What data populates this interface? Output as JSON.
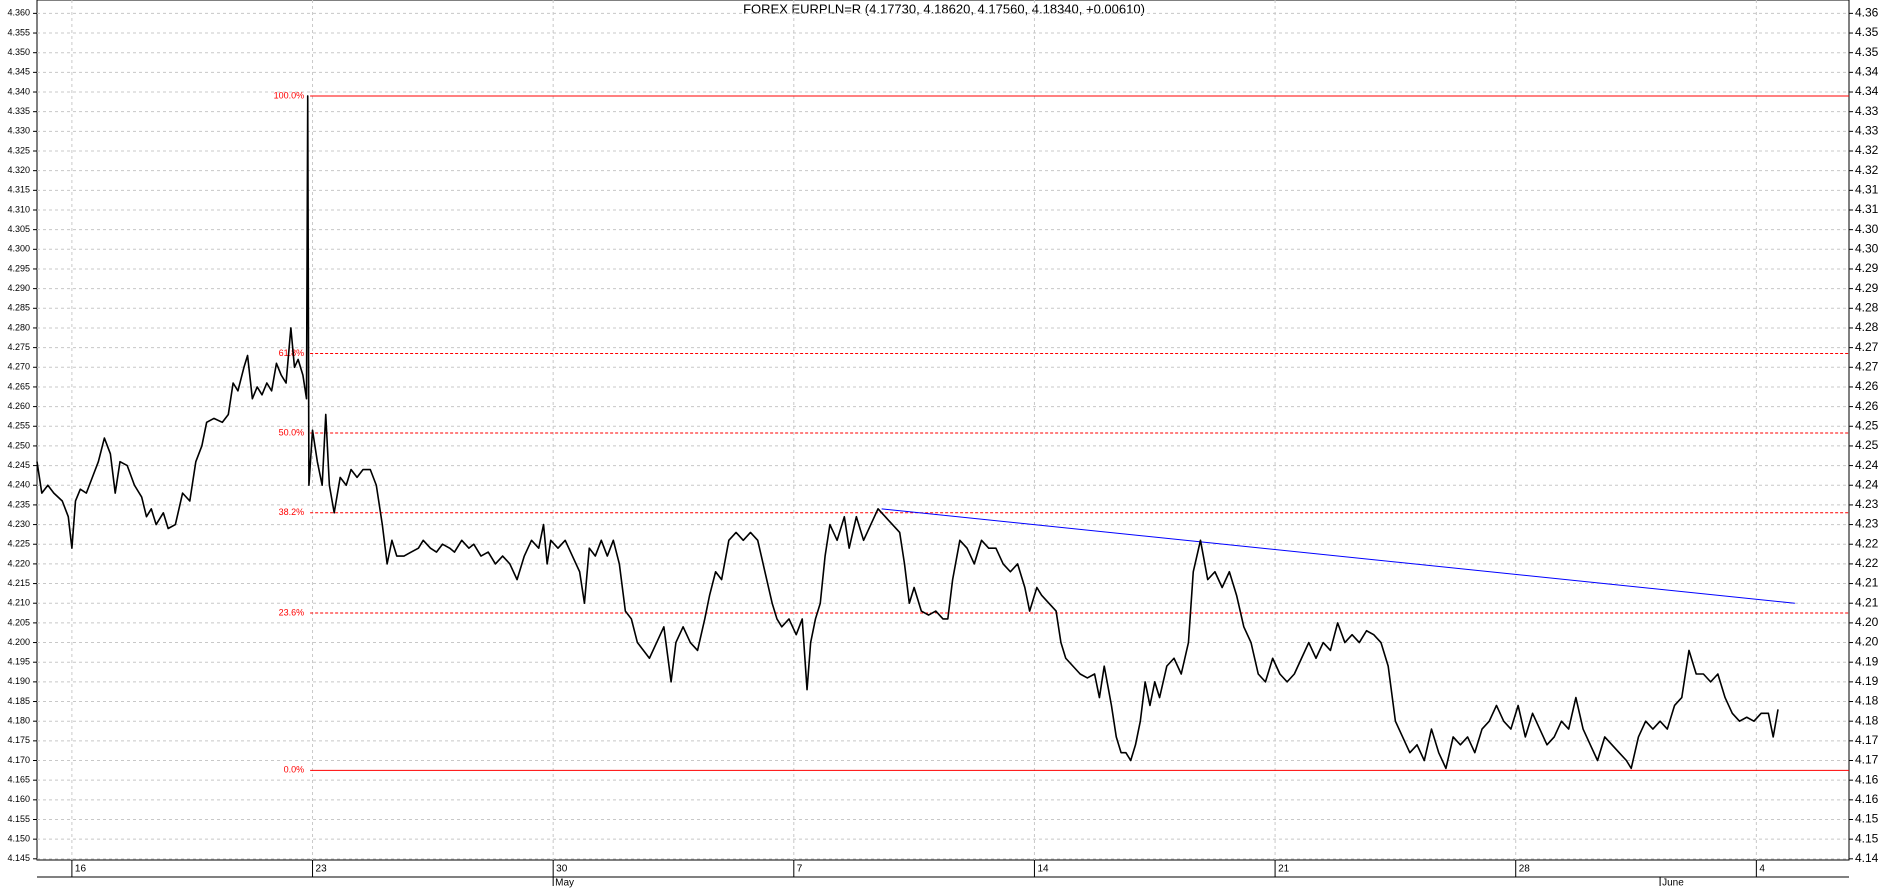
{
  "chart_data": {
    "type": "line",
    "title": "FOREX EURPLN=R (4.17730, 4.18620, 4.17560, 4.18340, +0.00610)",
    "color": "#000000",
    "grid": true,
    "xlim": [
      -0.725,
      36.925
    ],
    "ylim": [
      4.1447,
      4.3634
    ],
    "y2lim": [
      4.1447,
      4.3634
    ],
    "xticks": [
      {
        "value": 0,
        "label": "16"
      },
      {
        "value": 5,
        "label": "23"
      },
      {
        "value": 10,
        "label": "30"
      },
      {
        "value": 15,
        "label": "7"
      },
      {
        "value": 20,
        "label": "14"
      },
      {
        "value": 25,
        "label": "21"
      },
      {
        "value": 30,
        "label": "28"
      },
      {
        "value": 35,
        "label": "4"
      }
    ],
    "month_labels": [
      {
        "value": 10,
        "label": "May"
      },
      {
        "value": 33,
        "label": "June"
      }
    ],
    "yticks": [
      {
        "value": 4.145,
        "label": "4.145"
      },
      {
        "value": 4.15,
        "label": "4.150"
      },
      {
        "value": 4.155,
        "label": "4.155"
      },
      {
        "value": 4.16,
        "label": "4.160"
      },
      {
        "value": 4.165,
        "label": "4.165"
      },
      {
        "value": 4.17,
        "label": "4.170"
      },
      {
        "value": 4.175,
        "label": "4.175"
      },
      {
        "value": 4.18,
        "label": "4.180"
      },
      {
        "value": 4.185,
        "label": "4.185"
      },
      {
        "value": 4.19,
        "label": "4.190"
      },
      {
        "value": 4.195,
        "label": "4.195"
      },
      {
        "value": 4.2,
        "label": "4.200"
      },
      {
        "value": 4.205,
        "label": "4.205"
      },
      {
        "value": 4.21,
        "label": "4.210"
      },
      {
        "value": 4.215,
        "label": "4.215"
      },
      {
        "value": 4.22,
        "label": "4.220"
      },
      {
        "value": 4.225,
        "label": "4.225"
      },
      {
        "value": 4.23,
        "label": "4.230"
      },
      {
        "value": 4.235,
        "label": "4.235"
      },
      {
        "value": 4.24,
        "label": "4.240"
      },
      {
        "value": 4.245,
        "label": "4.245"
      },
      {
        "value": 4.25,
        "label": "4.250"
      },
      {
        "value": 4.255,
        "label": "4.255"
      },
      {
        "value": 4.26,
        "label": "4.260"
      },
      {
        "value": 4.265,
        "label": "4.265"
      },
      {
        "value": 4.27,
        "label": "4.270"
      },
      {
        "value": 4.275,
        "label": "4.275"
      },
      {
        "value": 4.28,
        "label": "4.280"
      },
      {
        "value": 4.285,
        "label": "4.285"
      },
      {
        "value": 4.29,
        "label": "4.290"
      },
      {
        "value": 4.295,
        "label": "4.295"
      },
      {
        "value": 4.3,
        "label": "4.300"
      },
      {
        "value": 4.305,
        "label": "4.305"
      },
      {
        "value": 4.31,
        "label": "4.310"
      },
      {
        "value": 4.315,
        "label": "4.315"
      },
      {
        "value": 4.32,
        "label": "4.320"
      },
      {
        "value": 4.325,
        "label": "4.325"
      },
      {
        "value": 4.33,
        "label": "4.330"
      },
      {
        "value": 4.335,
        "label": "4.335"
      },
      {
        "value": 4.34,
        "label": "4.340"
      },
      {
        "value": 4.345,
        "label": "4.345"
      },
      {
        "value": 4.35,
        "label": "4.350"
      },
      {
        "value": 4.355,
        "label": "4.355"
      },
      {
        "value": 4.36,
        "label": "4.360"
      }
    ],
    "y2ticks": [
      {
        "value": 4.145,
        "label": "4.14"
      },
      {
        "value": 4.15,
        "label": "4.15"
      },
      {
        "value": 4.155,
        "label": "4.15"
      },
      {
        "value": 4.16,
        "label": "4.16"
      },
      {
        "value": 4.165,
        "label": "4.16"
      },
      {
        "value": 4.17,
        "label": "4.17"
      },
      {
        "value": 4.175,
        "label": "4.17"
      },
      {
        "value": 4.18,
        "label": "4.18"
      },
      {
        "value": 4.185,
        "label": "4.18"
      },
      {
        "value": 4.19,
        "label": "4.19"
      },
      {
        "value": 4.195,
        "label": "4.19"
      },
      {
        "value": 4.2,
        "label": "4.20"
      },
      {
        "value": 4.205,
        "label": "4.20"
      },
      {
        "value": 4.21,
        "label": "4.21"
      },
      {
        "value": 4.215,
        "label": "4.21"
      },
      {
        "value": 4.22,
        "label": "4.22"
      },
      {
        "value": 4.225,
        "label": "4.22"
      },
      {
        "value": 4.23,
        "label": "4.23"
      },
      {
        "value": 4.235,
        "label": "4.23"
      },
      {
        "value": 4.24,
        "label": "4.24"
      },
      {
        "value": 4.245,
        "label": "4.24"
      },
      {
        "value": 4.25,
        "label": "4.25"
      },
      {
        "value": 4.255,
        "label": "4.25"
      },
      {
        "value": 4.26,
        "label": "4.26"
      },
      {
        "value": 4.265,
        "label": "4.26"
      },
      {
        "value": 4.27,
        "label": "4.27"
      },
      {
        "value": 4.275,
        "label": "4.27"
      },
      {
        "value": 4.28,
        "label": "4.28"
      },
      {
        "value": 4.285,
        "label": "4.28"
      },
      {
        "value": 4.29,
        "label": "4.29"
      },
      {
        "value": 4.295,
        "label": "4.29"
      },
      {
        "value": 4.3,
        "label": "4.30"
      },
      {
        "value": 4.305,
        "label": "4.30"
      },
      {
        "value": 4.31,
        "label": "4.31"
      },
      {
        "value": 4.315,
        "label": "4.31"
      },
      {
        "value": 4.32,
        "label": "4.32"
      },
      {
        "value": 4.325,
        "label": "4.32"
      },
      {
        "value": 4.33,
        "label": "4.33"
      },
      {
        "value": 4.335,
        "label": "4.33"
      },
      {
        "value": 4.34,
        "label": "4.34"
      },
      {
        "value": 4.345,
        "label": "4.34"
      },
      {
        "value": 4.35,
        "label": "4.35"
      },
      {
        "value": 4.355,
        "label": "4.35"
      },
      {
        "value": 4.36,
        "label": "4.36"
      }
    ],
    "fibonacci": {
      "color": "#ff0000",
      "start_x": 4.95,
      "levels": [
        {
          "value": 4.339,
          "label": "100.0%"
        },
        {
          "value": 4.2735,
          "label": "61.8%"
        },
        {
          "value": 4.2533,
          "label": "50.0%"
        },
        {
          "value": 4.233,
          "label": "38.2%"
        },
        {
          "value": 4.2075,
          "label": "23.6%"
        },
        {
          "value": 4.1675,
          "label": "0.0%"
        }
      ]
    },
    "trendline": {
      "color": "#0000ff",
      "x": [
        16.825,
        35.8
      ],
      "y": [
        4.234,
        4.21
      ]
    },
    "x": [
      -0.725,
      -0.625,
      -0.5,
      -0.375,
      -0.2,
      -0.075,
      0,
      0.075,
      0.175,
      0.3,
      0.425,
      0.55,
      0.675,
      0.8,
      0.9,
      1,
      1.15,
      1.3,
      1.45,
      1.55,
      1.65,
      1.75,
      1.9,
      2,
      2.15,
      2.3,
      2.45,
      2.575,
      2.7,
      2.8,
      2.95,
      3.125,
      3.25,
      3.35,
      3.45,
      3.575,
      3.65,
      3.75,
      3.85,
      3.95,
      4.05,
      4.15,
      4.25,
      4.35,
      4.45,
      4.55,
      4.625,
      4.7,
      4.8,
      4.875,
      4.9,
      4.925,
      5,
      5.1,
      5.2,
      5.275,
      5.35,
      5.45,
      5.575,
      5.7,
      5.8,
      5.925,
      6.05,
      6.2,
      6.325,
      6.45,
      6.55,
      6.65,
      6.75,
      6.9,
      7.05,
      7.2,
      7.3,
      7.45,
      7.575,
      7.7,
      7.85,
      7.95,
      8.1,
      8.25,
      8.35,
      8.5,
      8.65,
      8.8,
      8.95,
      9.1,
      9.25,
      9.4,
      9.55,
      9.7,
      9.8,
      9.875,
      9.95,
      10.1,
      10.25,
      10.4,
      10.55,
      10.65,
      10.75,
      10.875,
      11,
      11.125,
      11.25,
      11.375,
      11.5,
      11.625,
      11.75,
      11.875,
      12,
      12.15,
      12.3,
      12.45,
      12.55,
      12.7,
      12.85,
      13,
      13.15,
      13.25,
      13.375,
      13.5,
      13.65,
      13.8,
      13.95,
      14.1,
      14.25,
      14.4,
      14.55,
      14.65,
      14.75,
      14.9,
      15.05,
      15.175,
      15.275,
      15.35,
      15.45,
      15.55,
      15.65,
      15.75,
      15.9,
      16.05,
      16.15,
      16.3,
      16.45,
      16.6,
      16.75,
      16.9,
      17.05,
      17.2,
      17.3,
      17.4,
      17.5,
      17.65,
      17.8,
      17.95,
      18.1,
      18.2,
      18.3,
      18.45,
      18.6,
      18.75,
      18.9,
      19.05,
      19.2,
      19.35,
      19.5,
      19.65,
      19.8,
      19.9,
      20.05,
      20.15,
      20.3,
      20.45,
      20.55,
      20.65,
      20.8,
      20.95,
      21.1,
      21.25,
      21.35,
      21.45,
      21.6,
      21.7,
      21.8,
      21.9,
      22,
      22.1,
      22.2,
      22.3,
      22.4,
      22.5,
      22.6,
      22.75,
      22.9,
      23.05,
      23.2,
      23.3,
      23.45,
      23.6,
      23.75,
      23.9,
      24.05,
      24.2,
      24.35,
      24.5,
      24.65,
      24.8,
      24.95,
      25.1,
      25.25,
      25.4,
      25.55,
      25.7,
      25.85,
      26,
      26.15,
      26.3,
      26.45,
      26.6,
      26.75,
      26.9,
      27.05,
      27.2,
      27.35,
      27.5,
      27.65,
      27.8,
      27.95,
      28.1,
      28.25,
      28.4,
      28.55,
      28.7,
      28.85,
      29,
      29.15,
      29.3,
      29.45,
      29.6,
      29.75,
      29.9,
      30.05,
      30.2,
      30.35,
      30.5,
      30.65,
      30.8,
      30.95,
      31.1,
      31.25,
      31.4,
      31.55,
      31.7,
      31.85,
      32,
      32.15,
      32.3,
      32.4,
      32.55,
      32.7,
      32.85,
      33,
      33.15,
      33.3,
      33.45,
      33.6,
      33.75,
      33.9,
      34.05,
      34.2,
      34.35,
      34.5,
      34.65,
      34.8,
      34.95,
      35.1,
      35.25,
      35.35,
      35.45
    ],
    "values": [
      4.246,
      4.238,
      4.24,
      4.238,
      4.236,
      4.232,
      4.224,
      4.236,
      4.239,
      4.238,
      4.242,
      4.246,
      4.252,
      4.248,
      4.238,
      4.246,
      4.245,
      4.24,
      4.237,
      4.232,
      4.234,
      4.23,
      4.233,
      4.229,
      4.23,
      4.238,
      4.236,
      4.246,
      4.25,
      4.256,
      4.257,
      4.256,
      4.258,
      4.266,
      4.264,
      4.27,
      4.273,
      4.262,
      4.265,
      4.263,
      4.266,
      4.264,
      4.271,
      4.268,
      4.266,
      4.28,
      4.27,
      4.272,
      4.268,
      4.262,
      4.339,
      4.24,
      4.254,
      4.246,
      4.24,
      4.258,
      4.24,
      4.233,
      4.242,
      4.24,
      4.244,
      4.242,
      4.244,
      4.244,
      4.24,
      4.23,
      4.22,
      4.226,
      4.222,
      4.222,
      4.223,
      4.224,
      4.226,
      4.224,
      4.223,
      4.225,
      4.224,
      4.223,
      4.226,
      4.224,
      4.225,
      4.222,
      4.223,
      4.22,
      4.222,
      4.22,
      4.216,
      4.222,
      4.226,
      4.224,
      4.23,
      4.22,
      4.226,
      4.224,
      4.226,
      4.222,
      4.218,
      4.21,
      4.224,
      4.222,
      4.226,
      4.222,
      4.226,
      4.22,
      4.208,
      4.206,
      4.2,
      4.198,
      4.196,
      4.2,
      4.204,
      4.19,
      4.2,
      4.204,
      4.2,
      4.198,
      4.206,
      4.212,
      4.218,
      4.216,
      4.226,
      4.228,
      4.226,
      4.228,
      4.226,
      4.218,
      4.21,
      4.206,
      4.204,
      4.206,
      4.202,
      4.206,
      4.188,
      4.2,
      4.206,
      4.21,
      4.222,
      4.23,
      4.226,
      4.232,
      4.224,
      4.232,
      4.226,
      4.23,
      4.234,
      4.232,
      4.23,
      4.228,
      4.22,
      4.21,
      4.214,
      4.208,
      4.207,
      4.208,
      4.206,
      4.206,
      4.216,
      4.226,
      4.224,
      4.22,
      4.226,
      4.224,
      4.224,
      4.22,
      4.218,
      4.22,
      4.214,
      4.208,
      4.214,
      4.212,
      4.21,
      4.208,
      4.2,
      4.196,
      4.194,
      4.192,
      4.191,
      4.192,
      4.186,
      4.194,
      4.184,
      4.176,
      4.172,
      4.172,
      4.17,
      4.174,
      4.18,
      4.19,
      4.184,
      4.19,
      4.186,
      4.194,
      4.196,
      4.192,
      4.2,
      4.218,
      4.226,
      4.216,
      4.218,
      4.214,
      4.218,
      4.212,
      4.204,
      4.2,
      4.192,
      4.19,
      4.196,
      4.192,
      4.19,
      4.192,
      4.196,
      4.2,
      4.196,
      4.2,
      4.198,
      4.205,
      4.2,
      4.202,
      4.2,
      4.203,
      4.202,
      4.2,
      4.194,
      4.18,
      4.176,
      4.172,
      4.174,
      4.17,
      4.178,
      4.172,
      4.168,
      4.176,
      4.174,
      4.176,
      4.172,
      4.178,
      4.18,
      4.184,
      4.18,
      4.178,
      4.184,
      4.176,
      4.182,
      4.178,
      4.174,
      4.176,
      4.18,
      4.178,
      4.186,
      4.178,
      4.174,
      4.17,
      4.176,
      4.174,
      4.172,
      4.17,
      4.168,
      4.176,
      4.18,
      4.178,
      4.18,
      4.178,
      4.184,
      4.186,
      4.198,
      4.192,
      4.192,
      4.19,
      4.192,
      4.186,
      4.182,
      4.18,
      4.181,
      4.18,
      4.182,
      4.182,
      4.176,
      4.183
    ]
  }
}
